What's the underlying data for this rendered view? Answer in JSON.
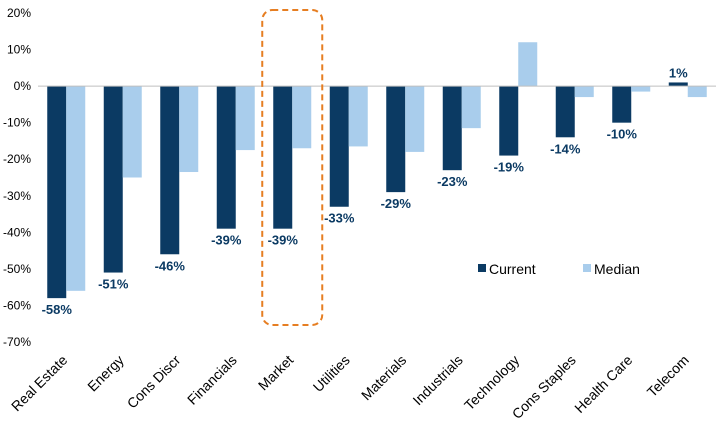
{
  "chart_data": {
    "type": "bar",
    "categories": [
      "Real Estate",
      "Energy",
      "Cons Discr",
      "Financials",
      "Market",
      "Utilities",
      "Materials",
      "Industrials",
      "Technology",
      "Cons Staples",
      "Health Care",
      "Telecom"
    ],
    "series": [
      {
        "name": "Current",
        "color": "#0b3a63",
        "values": [
          -58,
          -51,
          -46,
          -39,
          -39,
          -33,
          -29,
          -23,
          -19,
          -14,
          -10,
          1
        ]
      },
      {
        "name": "Median",
        "color": "#a9cdec",
        "values": [
          -56,
          -25,
          -23.5,
          -17.5,
          -17,
          -16.5,
          -18,
          -11.5,
          12,
          -3,
          -1.5,
          -3
        ]
      }
    ],
    "data_labels": [
      "-58%",
      "-51%",
      "-46%",
      "-39%",
      "-39%",
      "-33%",
      "-29%",
      "-23%",
      "-19%",
      "-14%",
      "-10%",
      "1%"
    ],
    "y_ticks": [
      "20%",
      "10%",
      "0%",
      "-10%",
      "-20%",
      "-30%",
      "-40%",
      "-50%",
      "-60%",
      "-70%"
    ],
    "ylim": [
      -70,
      20
    ],
    "highlight_category": "Market",
    "highlight_color": "#e67e22",
    "label_color": "#0b3a63",
    "legend_position": "bottom-right",
    "title": "",
    "xlabel": "",
    "ylabel": ""
  }
}
